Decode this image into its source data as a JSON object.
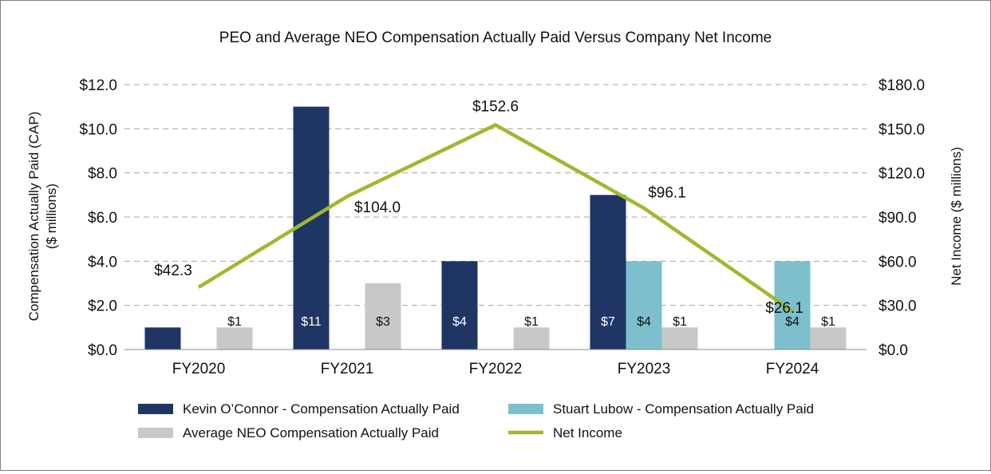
{
  "chart_data": {
    "type": "bar+line",
    "title": "PEO and Average NEO Compensation Actually Paid Versus Company Net Income",
    "categories": [
      "FY2020",
      "FY2021",
      "FY2022",
      "FY2023",
      "FY2024"
    ],
    "ylabel_left": "Compensation Actually Paid (CAP) ($ millions)",
    "ylabel_left_lines": [
      "Compensation Actually Paid (CAP)",
      "($ millions)"
    ],
    "ylabel_right": "Net Income ($ millions)",
    "ylim_left": [
      0,
      12
    ],
    "ylim_right": [
      0,
      180
    ],
    "yticks_left": [
      "$0.0",
      "$2.0",
      "$4.0",
      "$6.0",
      "$8.0",
      "$10.0",
      "$12.0"
    ],
    "yticks_right": [
      "$0.0",
      "$30.0",
      "$60.0",
      "$90.0",
      "$120.0",
      "$150.0",
      "$180.0"
    ],
    "grid": "horizontal dashed",
    "legend_position": "bottom",
    "series": [
      {
        "name": "Kevin O’Connor - Compensation Actually Paid",
        "type": "bar",
        "axis": "left",
        "color": "#1f3564",
        "values": [
          1,
          11,
          4,
          7,
          null
        ],
        "labels": [
          "$1",
          "$11",
          "$4",
          "$7",
          ""
        ]
      },
      {
        "name": "Stuart Lubow - Compensation Actually Paid",
        "type": "bar",
        "axis": "left",
        "color": "#7dbfcc",
        "values": [
          null,
          null,
          null,
          4,
          4
        ],
        "labels": [
          "",
          "",
          "",
          "$4",
          "$4"
        ]
      },
      {
        "name": "Average NEO Compensation Actually Paid",
        "type": "bar",
        "axis": "left",
        "color": "#c8c8c8",
        "values": [
          1,
          3,
          1,
          1,
          1
        ],
        "labels": [
          "$1",
          "$3",
          "$1",
          "$1",
          "$1"
        ]
      },
      {
        "name": "Net Income",
        "type": "line",
        "axis": "right",
        "color": "#a0b82e",
        "values": [
          42.3,
          104.0,
          152.6,
          96.1,
          26.1
        ],
        "labels": [
          "$42.3",
          "$104.0",
          "$152.6",
          "$96.1",
          "$26.1"
        ]
      }
    ]
  }
}
